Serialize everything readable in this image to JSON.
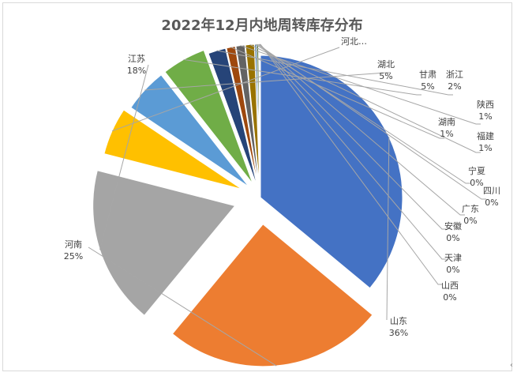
{
  "chart_data": {
    "type": "pie",
    "title": "2022年12月内地周转库存分布",
    "slices": [
      {
        "name": "山东",
        "value": 36,
        "label": "36%",
        "color": "#4472c4"
      },
      {
        "name": "河南",
        "value": 25,
        "label": "25%",
        "color": "#ed7d31"
      },
      {
        "name": "江苏",
        "value": 18,
        "label": "18%",
        "color": "#a5a5a5"
      },
      {
        "name": "河北…",
        "value": 5.4,
        "label": "",
        "color": "#ffc000"
      },
      {
        "name": "湖北",
        "value": 5,
        "label": "5%",
        "color": "#5b9bd5"
      },
      {
        "name": "甘肃",
        "value": 5,
        "label": "5%",
        "color": "#70ad47"
      },
      {
        "name": "浙江",
        "value": 2,
        "label": "2%",
        "color": "#264478"
      },
      {
        "name": "湖南",
        "value": 1,
        "label": "1%",
        "color": "#9e480e"
      },
      {
        "name": "陕西",
        "value": 1,
        "label": "1%",
        "color": "#636363"
      },
      {
        "name": "福建",
        "value": 1,
        "label": "1%",
        "color": "#997300"
      },
      {
        "name": "宁夏",
        "value": 0.2,
        "label": "0%",
        "color": "#255e91"
      },
      {
        "name": "四川",
        "value": 0.2,
        "label": "0%",
        "color": "#43682b"
      },
      {
        "name": "广东",
        "value": 0.1,
        "label": "0%",
        "color": "#698ed0"
      },
      {
        "name": "安徽",
        "value": 0.05,
        "label": "0%",
        "color": "#f1975a"
      },
      {
        "name": "天津",
        "value": 0.03,
        "label": "0%",
        "color": "#b7b7b7"
      },
      {
        "name": "山西",
        "value": 0.02,
        "label": "0%",
        "color": "#ffcd33"
      }
    ],
    "legend": "none",
    "start_angle_deg": 90,
    "direction": "clockwise"
  },
  "corner_mark": "‹"
}
